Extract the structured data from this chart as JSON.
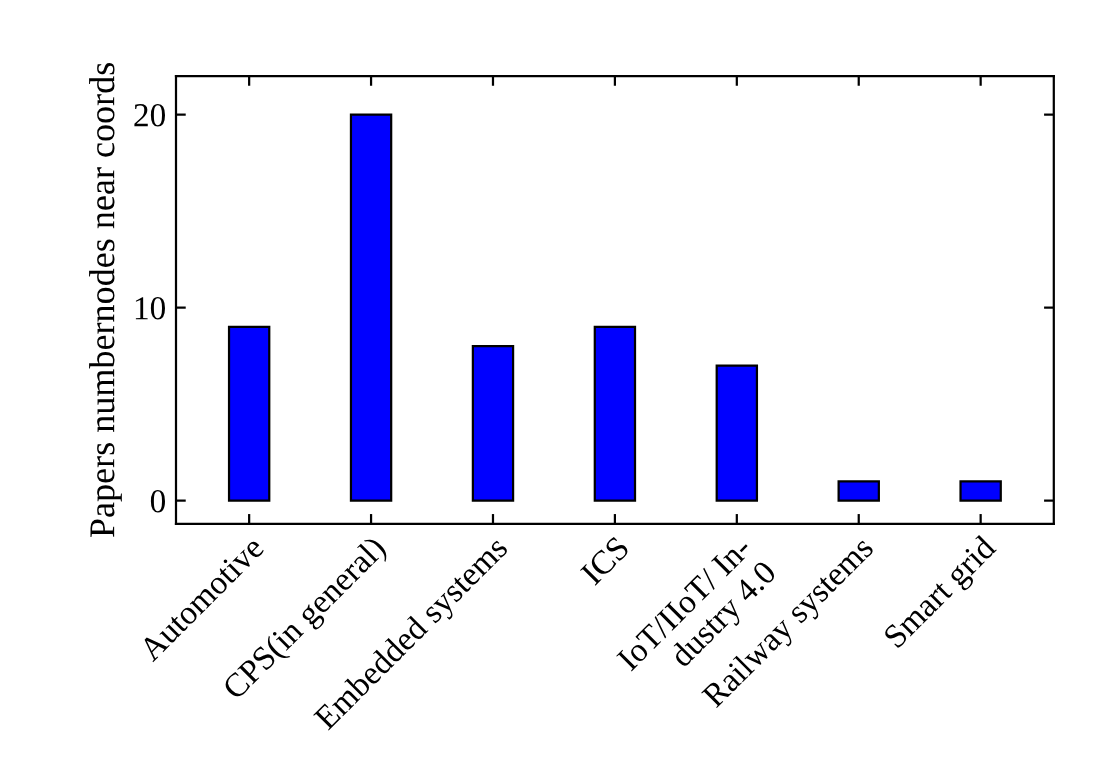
{
  "chart_data": {
    "type": "bar",
    "ylabel": "Papers numbernodes near coords",
    "categories": [
      "Automotive",
      "CPS(in general)",
      "Embedded systems",
      "ICS",
      "IoT/IIoT/ In-\ndustry 4.0",
      "Railway systems",
      "Smart grid"
    ],
    "values": [
      9,
      20,
      8,
      9,
      7,
      1,
      1
    ],
    "color": "#0000ff",
    "ylim": [
      -1.2,
      22
    ],
    "yticks": [
      0,
      10,
      20
    ],
    "grid": false
  }
}
